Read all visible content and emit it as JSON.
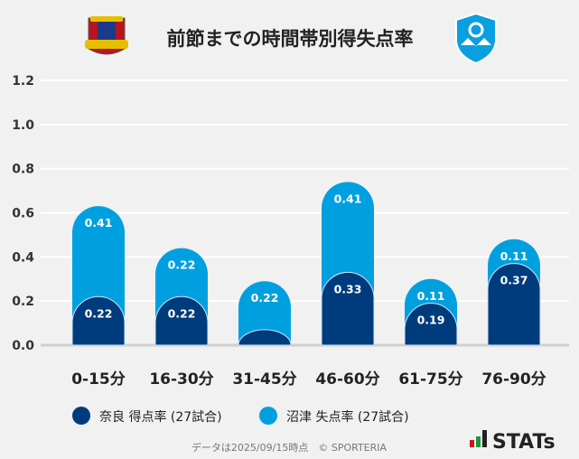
{
  "chart_data": {
    "type": "bar",
    "stacked": true,
    "title": "前節までの時間帯別得失点率",
    "categories": [
      "0-15分",
      "16-30分",
      "31-45分",
      "46-60分",
      "61-75分",
      "76-90分"
    ],
    "series": [
      {
        "name": "奈良 得点率 (27試合)",
        "color": "#003c7d",
        "values": [
          0.22,
          0.22,
          0.07,
          0.33,
          0.19,
          0.37
        ],
        "labels": [
          "0.22",
          "0.22",
          "",
          "0.33",
          "0.19",
          "0.37"
        ]
      },
      {
        "name": "沼津 失点率 (27試合)",
        "color": "#00a0e0",
        "values": [
          0.41,
          0.22,
          0.22,
          0.41,
          0.11,
          0.11
        ],
        "labels": [
          "0.41",
          "0.22",
          "0.22",
          "0.41",
          "0.11",
          "0.11"
        ]
      }
    ],
    "ylim": [
      0,
      1.2
    ],
    "yticks": [
      "0.0",
      "0.2",
      "0.4",
      "0.6",
      "0.8",
      "1.0",
      "1.2"
    ],
    "grid": true,
    "legend": "bottom"
  },
  "footer": {
    "note": "データは2025/09/15時点　© SPORTERIA",
    "brand": "STATs"
  }
}
